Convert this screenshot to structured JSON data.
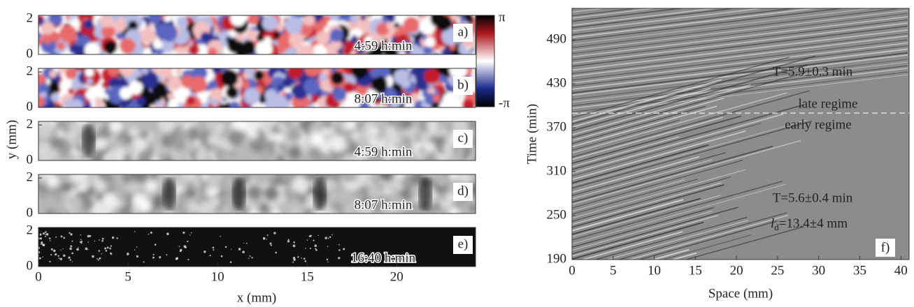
{
  "chart_data": [
    {
      "type": "image-panels",
      "panels": [
        {
          "label": "a)",
          "time": "4:59 h:min"
        },
        {
          "label": "b)",
          "time": "8:07 h:min"
        },
        {
          "label": "c)",
          "time": "4:59 h:min"
        },
        {
          "label": "d)",
          "time": "8:07 h:min"
        },
        {
          "label": "e)",
          "time": "16:40 h:min"
        }
      ],
      "xlabel": "x (mm)",
      "ylabel": "y (mm)",
      "xlim": [
        0,
        24.4
      ],
      "xticks": [
        0,
        5,
        10,
        15,
        20
      ],
      "ylim": [
        0,
        2.2
      ],
      "yticks": [
        0,
        2
      ],
      "colorbar": {
        "lim": [
          -3.1416,
          3.1416
        ],
        "ticks": [
          {
            "value": 3.1416,
            "label": "π"
          },
          {
            "value": -3.1416,
            "label": "-π"
          }
        ]
      }
    },
    {
      "type": "kymograph",
      "xlabel": "Space (mm)",
      "ylabel": "Time (min)",
      "xlim": [
        0,
        41
      ],
      "xticks": [
        0,
        5,
        10,
        15,
        20,
        25,
        30,
        35,
        40
      ],
      "ylim": [
        190,
        533
      ],
      "yticks": [
        190,
        250,
        310,
        370,
        430,
        490
      ],
      "boundary": 390,
      "annotations": {
        "late_period": "T=5.9±0.3 min",
        "late": "late regime",
        "early": "early regime",
        "early_period": "T=5.6±0.4 min",
        "length": {
          "base": "l",
          "sub": "d",
          "rest": "=13.4±4 mm"
        },
        "panel": "f)"
      }
    }
  ]
}
